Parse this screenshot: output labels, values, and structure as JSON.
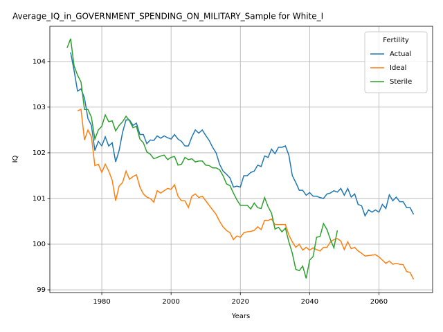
{
  "chart_data": {
    "type": "line",
    "title": "Average_IQ_in_GOVERNMENT_SPENDING_ON_MILITARY_Sample for White_I",
    "xlabel": "Years",
    "ylabel": "IQ",
    "legend_title": "Fertility",
    "legend_loc": "upper right",
    "grid": true,
    "xlim": [
      1965,
      2075.5
    ],
    "xticks": [
      1980,
      2000,
      2020,
      2040,
      2060
    ],
    "ylim": [
      98.94,
      104.77
    ],
    "yticks": [
      99,
      100,
      101,
      102,
      103,
      104
    ],
    "x": [
      1970,
      1971,
      1972,
      1973,
      1974,
      1975,
      1976,
      1977,
      1978,
      1979,
      1980,
      1981,
      1982,
      1983,
      1984,
      1985,
      1986,
      1987,
      1988,
      1989,
      1990,
      1991,
      1992,
      1993,
      1994,
      1995,
      1996,
      1997,
      1998,
      1999,
      2000,
      2001,
      2002,
      2003,
      2004,
      2005,
      2006,
      2007,
      2008,
      2009,
      2010,
      2011,
      2012,
      2013,
      2014,
      2015,
      2016,
      2017,
      2018,
      2019,
      2020,
      2021,
      2022,
      2023,
      2024,
      2025,
      2026,
      2027,
      2028,
      2029,
      2030,
      2031,
      2032,
      2033,
      2034,
      2035,
      2036,
      2037,
      2038,
      2039,
      2040,
      2041,
      2042,
      2043,
      2044,
      2045,
      2046,
      2047,
      2048,
      2049,
      2050,
      2051,
      2052,
      2053,
      2054,
      2055,
      2056,
      2057,
      2058,
      2059,
      2060,
      2061,
      2062,
      2063,
      2064,
      2065,
      2066,
      2067,
      2068,
      2069,
      2070
    ],
    "series": [
      {
        "name": "Actual",
        "color": "#1f77b4",
        "values": [
          null,
          104.2,
          103.8,
          103.35,
          103.4,
          103.2,
          102.75,
          102.6,
          102.05,
          102.25,
          102.15,
          102.35,
          102.15,
          102.22,
          101.8,
          102.05,
          102.45,
          102.72,
          102.72,
          102.6,
          102.65,
          102.4,
          102.4,
          102.2,
          102.28,
          102.27,
          102.37,
          102.32,
          102.37,
          102.33,
          102.3,
          102.4,
          102.3,
          102.25,
          102.15,
          102.15,
          102.35,
          102.5,
          102.43,
          102.5,
          102.38,
          102.27,
          102.12,
          102.0,
          101.75,
          101.6,
          101.53,
          101.45,
          101.25,
          101.27,
          101.25,
          101.5,
          101.5,
          101.57,
          101.6,
          101.73,
          101.7,
          101.93,
          101.9,
          102.08,
          101.98,
          102.12,
          102.12,
          102.15,
          101.95,
          101.5,
          101.35,
          101.18,
          101.18,
          101.07,
          101.13,
          101.05,
          101.05,
          101.02,
          101.0,
          101.1,
          101.12,
          101.17,
          101.14,
          101.22,
          101.07,
          101.22,
          101.03,
          101.1,
          100.87,
          100.84,
          100.62,
          100.75,
          100.7,
          100.75,
          100.7,
          100.87,
          100.78,
          101.08,
          100.95,
          101.03,
          100.93,
          100.93,
          100.8,
          100.8,
          100.65
        ]
      },
      {
        "name": "Ideal",
        "color": "#ff7f0e",
        "values": [
          null,
          null,
          null,
          102.92,
          102.95,
          102.28,
          102.5,
          102.35,
          101.72,
          101.75,
          101.57,
          101.75,
          101.6,
          101.4,
          100.95,
          101.27,
          101.35,
          101.6,
          101.42,
          101.48,
          101.52,
          101.25,
          101.1,
          101.03,
          101.0,
          100.92,
          101.17,
          101.12,
          101.17,
          101.22,
          101.2,
          101.3,
          101.05,
          100.95,
          100.95,
          100.8,
          101.05,
          101.1,
          101.02,
          101.05,
          100.95,
          100.85,
          100.75,
          100.65,
          100.5,
          100.38,
          100.3,
          100.25,
          100.1,
          100.18,
          100.15,
          100.25,
          100.27,
          100.28,
          100.3,
          100.38,
          100.32,
          100.52,
          100.52,
          100.55,
          100.43,
          100.43,
          100.43,
          100.43,
          100.2,
          100.05,
          99.93,
          100.0,
          99.87,
          99.93,
          99.87,
          99.92,
          99.88,
          99.85,
          99.93,
          99.93,
          100.05,
          100.1,
          100.12,
          100.07,
          99.88,
          100.05,
          99.9,
          99.93,
          99.85,
          99.8,
          99.74,
          99.75,
          99.76,
          99.77,
          99.72,
          99.65,
          99.58,
          99.63,
          99.56,
          99.58,
          99.56,
          99.55,
          99.4,
          99.38,
          99.23
        ]
      },
      {
        "name": "Sterile",
        "color": "#2ca02c",
        "values": [
          104.3,
          104.5,
          103.9,
          103.7,
          103.55,
          102.95,
          102.95,
          102.78,
          102.3,
          102.5,
          102.58,
          102.83,
          102.68,
          102.7,
          102.48,
          102.6,
          102.68,
          102.8,
          102.7,
          102.55,
          102.58,
          102.3,
          102.22,
          102.02,
          101.97,
          101.87,
          101.9,
          101.93,
          101.95,
          101.85,
          101.9,
          101.92,
          101.73,
          101.75,
          101.9,
          101.85,
          101.87,
          101.8,
          101.82,
          101.82,
          101.73,
          101.72,
          101.67,
          101.67,
          101.63,
          101.5,
          101.32,
          101.28,
          101.12,
          100.97,
          100.85,
          100.85,
          100.85,
          100.77,
          100.9,
          100.8,
          100.78,
          101.02,
          100.82,
          100.68,
          100.33,
          100.37,
          100.27,
          100.35,
          100.05,
          99.8,
          99.45,
          99.42,
          99.52,
          99.25,
          99.65,
          99.73,
          100.15,
          100.17,
          100.45,
          100.32,
          100.1,
          99.92,
          100.3,
          null,
          null,
          null,
          null,
          null,
          null,
          null,
          null,
          null,
          null,
          null,
          null,
          null,
          null,
          null,
          null,
          null,
          null,
          null,
          null,
          null,
          null
        ]
      }
    ]
  }
}
